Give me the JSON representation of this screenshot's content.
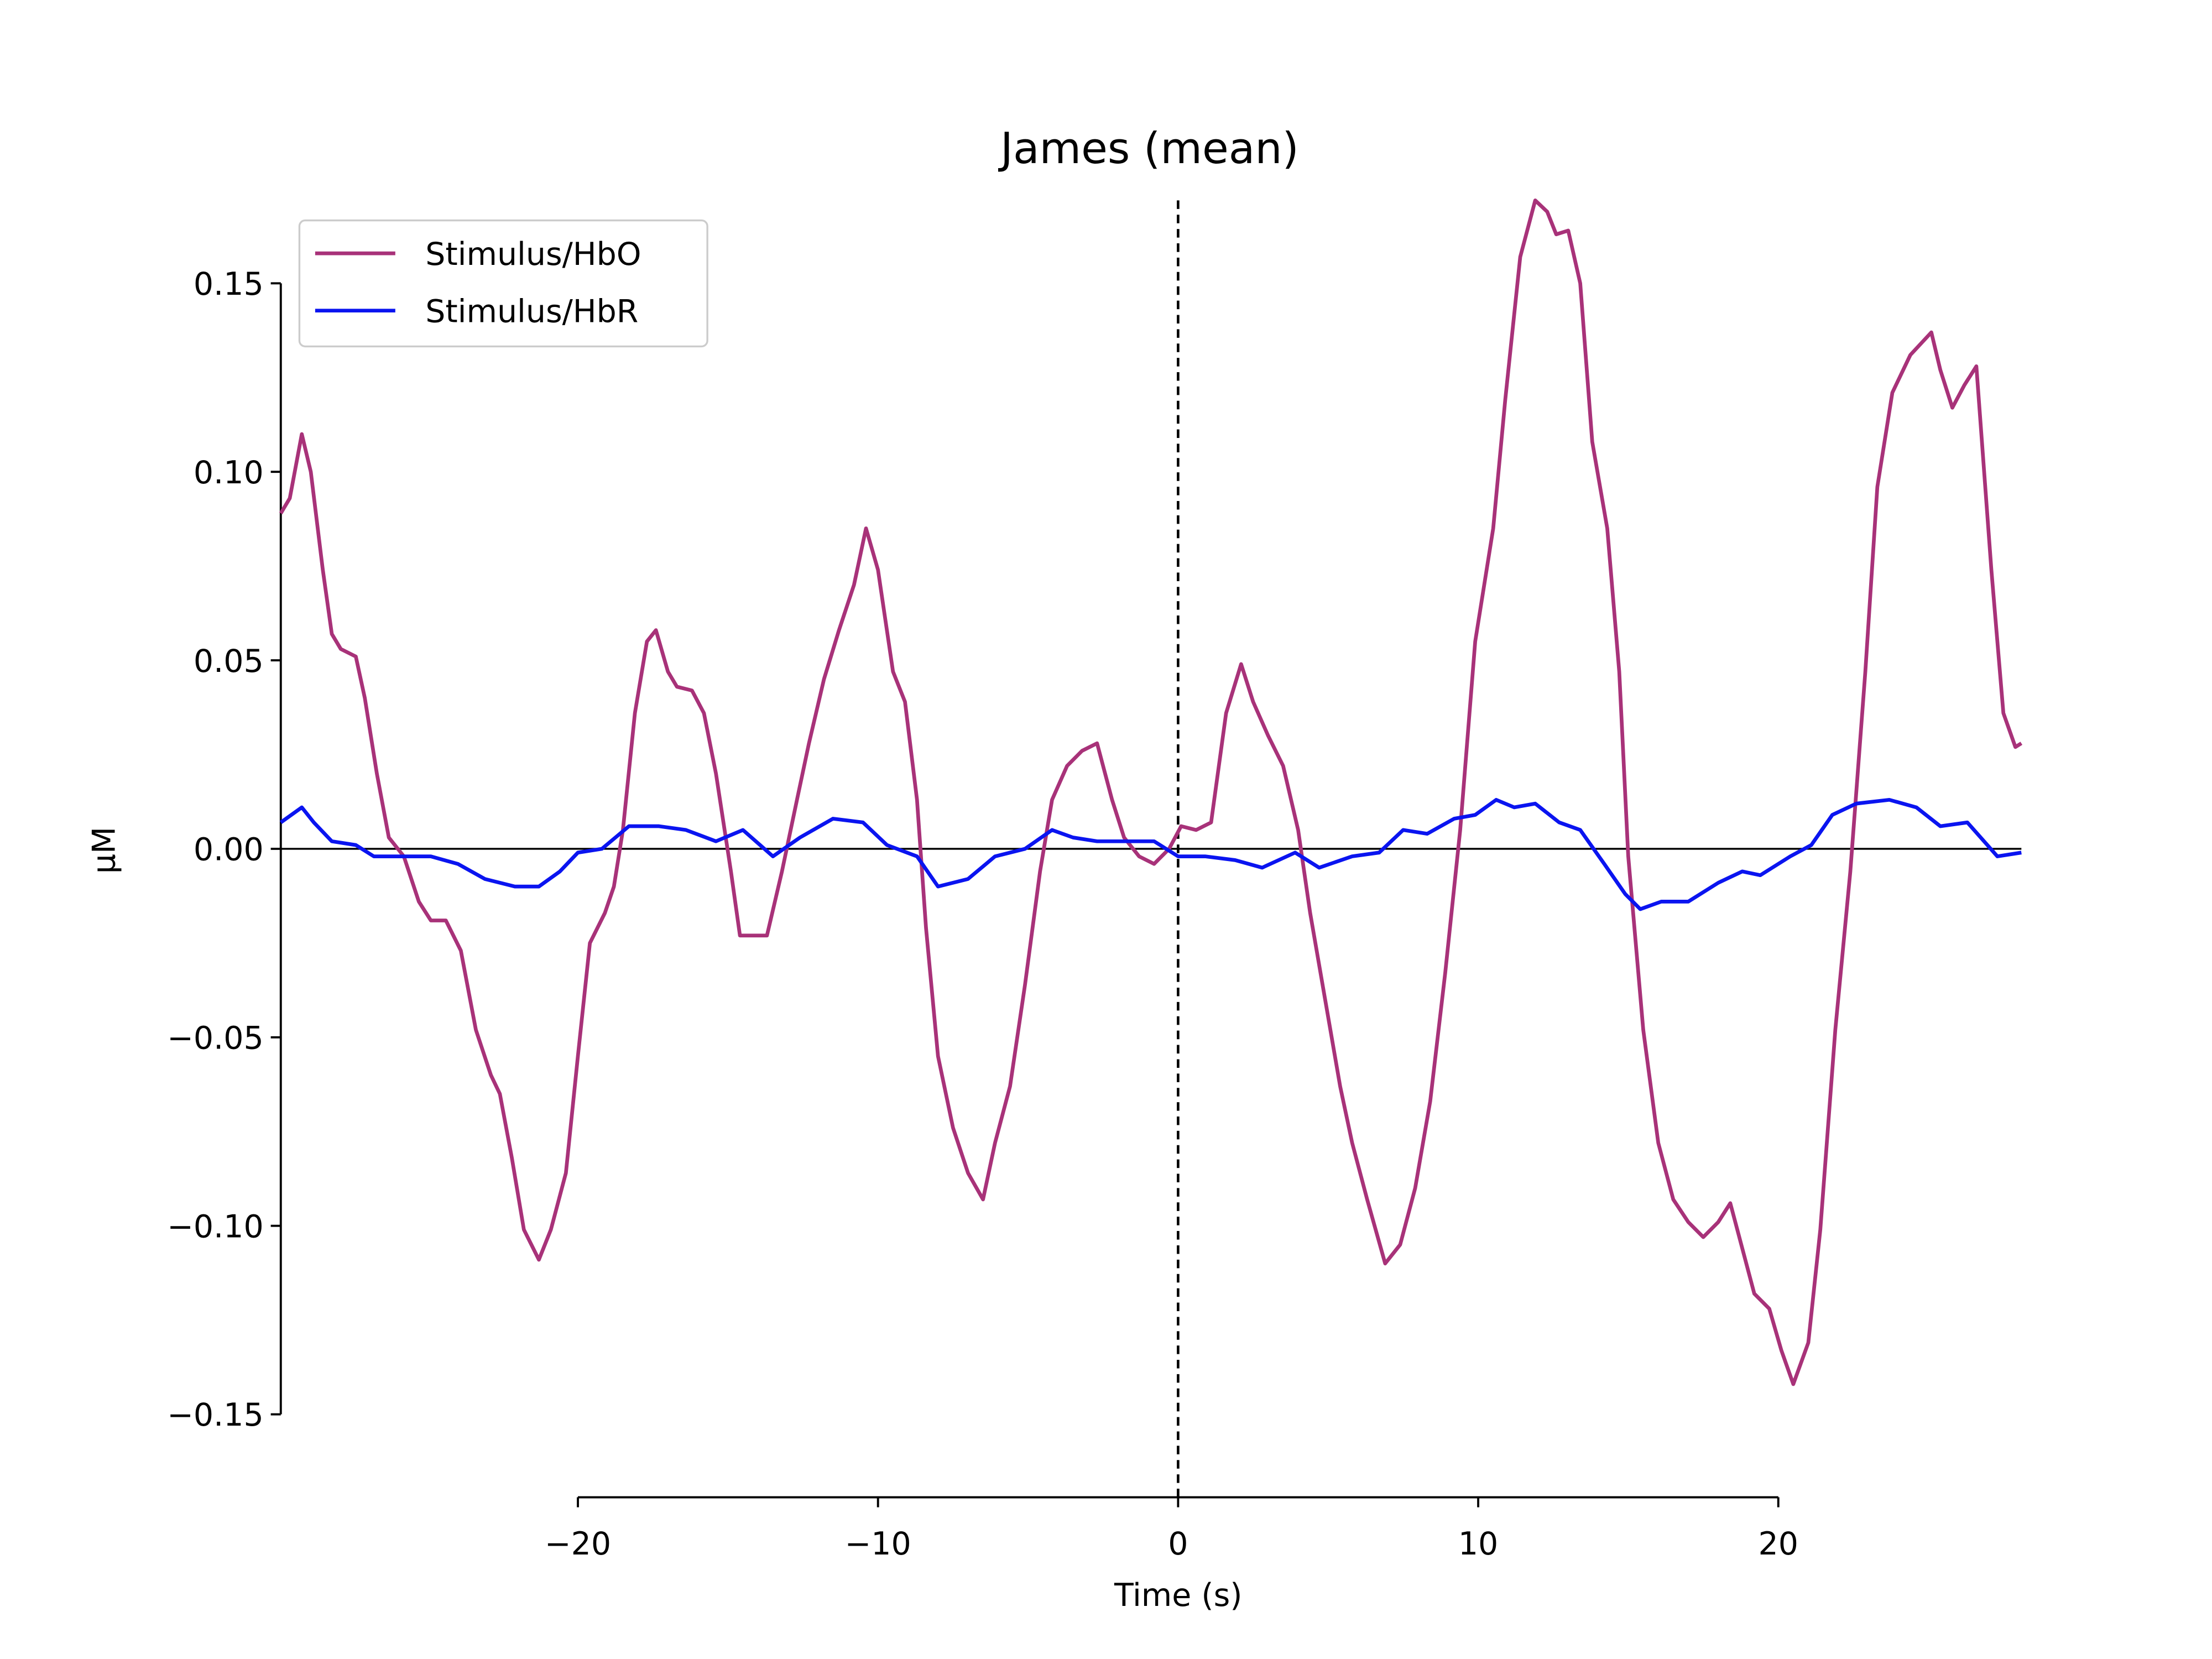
{
  "chart_data": {
    "type": "line",
    "title": "James (mean)",
    "xlabel": "Time (s)",
    "ylabel": "µM",
    "xlim": [
      -29.9,
      28.1
    ],
    "ylim": [
      -0.172,
      0.172
    ],
    "xticks": [
      {
        "value": -20,
        "label": "−20"
      },
      {
        "value": -10,
        "label": "−10"
      },
      {
        "value": 0,
        "label": "0"
      },
      {
        "value": 10,
        "label": "10"
      },
      {
        "value": 20,
        "label": "20"
      }
    ],
    "yticks": [
      {
        "value": -0.15,
        "label": "−0.15"
      },
      {
        "value": -0.1,
        "label": "−0.10"
      },
      {
        "value": -0.05,
        "label": "−0.05"
      },
      {
        "value": 0,
        "label": "0.00"
      },
      {
        "value": 0.05,
        "label": "0.05"
      },
      {
        "value": 0.1,
        "label": "0.10"
      },
      {
        "value": 0.15,
        "label": "0.15"
      }
    ],
    "hlines": [
      0
    ],
    "vlines": [
      0
    ],
    "legend": "upper left",
    "grid": false,
    "series": [
      {
        "name": "Stimulus/HbO",
        "color": "#a83279",
        "x": [
          -29.9,
          -29.6,
          -29.2,
          -28.9,
          -28.5,
          -28.2,
          -27.9,
          -27.4,
          -27.1,
          -26.7,
          -26.3,
          -25.8,
          -25.3,
          -24.9,
          -24.4,
          -23.9,
          -23.4,
          -22.9,
          -22.6,
          -22.2,
          -21.8,
          -21.3,
          -20.9,
          -20.4,
          -20.0,
          -19.6,
          -19.1,
          -18.8,
          -18.5,
          -18.1,
          -17.7,
          -17.4,
          -17.0,
          -16.7,
          -16.2,
          -15.8,
          -15.4,
          -14.9,
          -14.6,
          -14.2,
          -13.7,
          -13.2,
          -12.7,
          -12.3,
          -11.8,
          -11.3,
          -10.8,
          -10.4,
          -10.0,
          -9.5,
          -9.1,
          -8.7,
          -8.4,
          -8.0,
          -7.5,
          -7.0,
          -6.5,
          -6.1,
          -5.6,
          -5.1,
          -4.6,
          -4.2,
          -3.7,
          -3.2,
          -2.7,
          -2.2,
          -1.8,
          -1.3,
          -0.8,
          -0.3,
          0.1,
          0.6,
          1.1,
          1.6,
          2.1,
          2.5,
          3.0,
          3.5,
          4.0,
          4.4,
          4.9,
          5.4,
          5.8,
          6.3,
          6.9,
          7.4,
          7.9,
          8.4,
          8.9,
          9.4,
          9.9,
          10.5,
          10.9,
          11.4,
          11.9,
          12.3,
          12.6,
          13.0,
          13.4,
          13.8,
          14.3,
          14.7,
          15.0,
          15.5,
          16.0,
          16.5,
          17.0,
          17.5,
          18.0,
          18.4,
          18.9,
          19.2,
          19.7,
          20.1,
          20.5,
          21.0,
          21.4,
          21.9,
          22.4,
          22.9,
          23.3,
          23.8,
          24.4,
          25.1,
          25.4,
          25.8,
          26.2,
          26.6,
          27.1,
          27.5,
          27.9,
          28.1
        ],
        "values": [
          0.089,
          0.093,
          0.11,
          0.1,
          0.074,
          0.057,
          0.053,
          0.051,
          0.04,
          0.02,
          0.003,
          -0.002,
          -0.014,
          -0.019,
          -0.019,
          -0.027,
          -0.048,
          -0.06,
          -0.065,
          -0.082,
          -0.101,
          -0.109,
          -0.101,
          -0.086,
          -0.055,
          -0.025,
          -0.017,
          -0.01,
          0.005,
          0.036,
          0.055,
          0.058,
          0.047,
          0.043,
          0.042,
          0.036,
          0.02,
          -0.006,
          -0.023,
          -0.023,
          -0.023,
          -0.006,
          0.013,
          0.028,
          0.045,
          0.058,
          0.07,
          0.085,
          0.074,
          0.047,
          0.039,
          0.013,
          -0.021,
          -0.055,
          -0.074,
          -0.086,
          -0.093,
          -0.078,
          -0.063,
          -0.036,
          -0.006,
          0.013,
          0.022,
          0.026,
          0.028,
          0.013,
          0.003,
          -0.002,
          -0.004,
          0.0,
          0.006,
          0.005,
          0.007,
          0.036,
          0.049,
          0.039,
          0.03,
          0.022,
          0.005,
          -0.017,
          -0.04,
          -0.063,
          -0.078,
          -0.093,
          -0.11,
          -0.105,
          -0.09,
          -0.067,
          -0.033,
          0.005,
          0.055,
          0.085,
          0.119,
          0.157,
          0.172,
          0.169,
          0.163,
          0.164,
          0.15,
          0.108,
          0.085,
          0.047,
          -0.002,
          -0.048,
          -0.078,
          -0.093,
          -0.099,
          -0.103,
          -0.099,
          -0.094,
          -0.109,
          -0.118,
          -0.122,
          -0.133,
          -0.142,
          -0.131,
          -0.101,
          -0.048,
          -0.006,
          0.047,
          0.096,
          0.121,
          0.131,
          0.137,
          0.127,
          0.117,
          0.123,
          0.128,
          0.074,
          0.036,
          0.027,
          0.028
        ]
      },
      {
        "name": "Stimulus/HbR",
        "color": "#0a14f0",
        "x": [
          -29.9,
          -29.2,
          -28.8,
          -28.2,
          -27.4,
          -26.8,
          -25.9,
          -24.9,
          -24.0,
          -23.1,
          -22.1,
          -21.3,
          -20.6,
          -20.0,
          -19.2,
          -18.3,
          -17.3,
          -16.4,
          -15.4,
          -14.5,
          -13.5,
          -12.6,
          -11.5,
          -10.5,
          -9.7,
          -8.7,
          -8.0,
          -7.0,
          -6.1,
          -5.1,
          -4.2,
          -3.5,
          -2.7,
          -1.8,
          -0.8,
          0.0,
          0.9,
          1.9,
          2.8,
          3.9,
          4.7,
          5.8,
          6.7,
          7.5,
          8.3,
          9.2,
          9.9,
          10.6,
          11.2,
          11.9,
          12.7,
          13.4,
          14.2,
          14.9,
          15.4,
          16.1,
          17.0,
          18.0,
          18.8,
          19.4,
          20.4,
          21.1,
          21.8,
          22.6,
          23.7,
          24.6,
          25.4,
          26.3,
          27.3,
          28.1
        ],
        "values": [
          0.007,
          0.011,
          0.007,
          0.002,
          0.001,
          -0.002,
          -0.002,
          -0.002,
          -0.004,
          -0.008,
          -0.01,
          -0.01,
          -0.006,
          -0.001,
          0.0,
          0.006,
          0.006,
          0.005,
          0.002,
          0.005,
          -0.002,
          0.003,
          0.008,
          0.007,
          0.001,
          -0.002,
          -0.01,
          -0.008,
          -0.002,
          0.0,
          0.005,
          0.003,
          0.002,
          0.002,
          0.002,
          -0.002,
          -0.002,
          -0.003,
          -0.005,
          -0.001,
          -0.005,
          -0.002,
          -0.001,
          0.005,
          0.004,
          0.008,
          0.009,
          0.013,
          0.011,
          0.012,
          0.007,
          0.005,
          -0.004,
          -0.012,
          -0.016,
          -0.014,
          -0.014,
          -0.009,
          -0.006,
          -0.007,
          -0.002,
          0.001,
          0.009,
          0.012,
          0.013,
          0.011,
          0.006,
          0.007,
          -0.002,
          -0.001
        ]
      }
    ]
  }
}
